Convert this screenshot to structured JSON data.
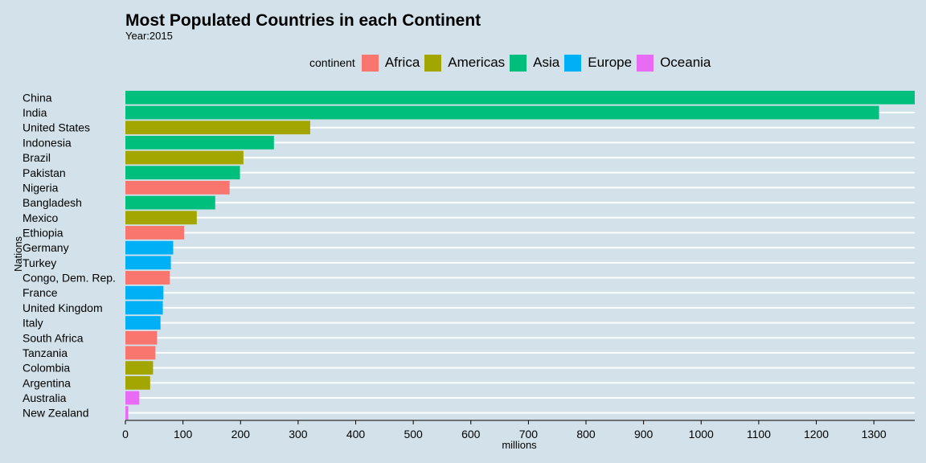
{
  "chart_data": {
    "type": "bar",
    "orientation": "horizontal",
    "title": "Most Populated Countries in each Continent",
    "subtitle": "Year:2015",
    "xlabel": "millions",
    "ylabel": "Nations",
    "xlim": [
      0,
      1371
    ],
    "x_ticks": [
      "0",
      "100",
      "200",
      "300",
      "400",
      "500",
      "600",
      "700",
      "800",
      "900",
      "1000",
      "1100",
      "1200",
      "1300"
    ],
    "grid": "horizontal",
    "legend_position": "top",
    "legend_title": "continent",
    "legend": [
      {
        "name": "Africa",
        "color": "#f8766d"
      },
      {
        "name": "Americas",
        "color": "#a3a500"
      },
      {
        "name": "Asia",
        "color": "#00bf7d"
      },
      {
        "name": "Europe",
        "color": "#00b0f6"
      },
      {
        "name": "Oceania",
        "color": "#e76bf3"
      }
    ],
    "categories": [
      "China",
      "India",
      "United States",
      "Indonesia",
      "Brazil",
      "Pakistan",
      "Nigeria",
      "Bangladesh",
      "Mexico",
      "Ethiopia",
      "Germany",
      "Turkey",
      "Congo, Dem. Rep.",
      "France",
      "United Kingdom",
      "Italy",
      "South Africa",
      "Tanzania",
      "Colombia",
      "Argentina",
      "Australia",
      "New Zealand"
    ],
    "values": [
      1371,
      1309,
      321,
      258,
      205,
      199,
      181,
      156,
      124,
      102,
      83,
      79,
      77,
      66,
      65,
      61,
      55,
      52,
      48,
      43,
      24,
      5
    ],
    "continent": [
      "Asia",
      "Asia",
      "Americas",
      "Asia",
      "Americas",
      "Asia",
      "Africa",
      "Asia",
      "Americas",
      "Africa",
      "Europe",
      "Europe",
      "Africa",
      "Europe",
      "Europe",
      "Europe",
      "Africa",
      "Africa",
      "Americas",
      "Americas",
      "Oceania",
      "Oceania"
    ]
  }
}
